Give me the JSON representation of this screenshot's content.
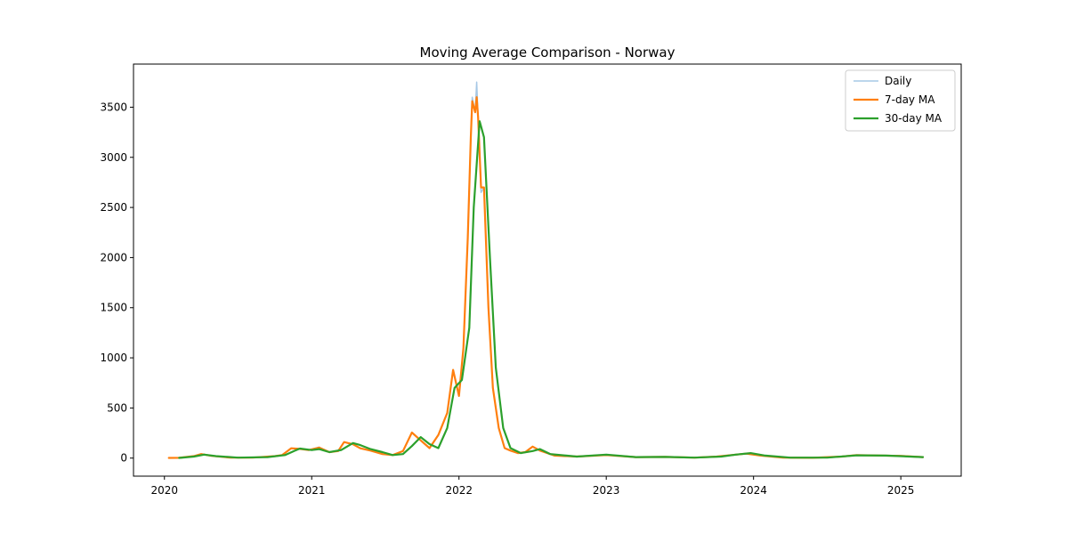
{
  "chart_data": {
    "type": "line",
    "title": "Moving Average Comparison - Norway",
    "xlabel": "",
    "ylabel": "",
    "xlim": [
      2019.79,
      2025.41
    ],
    "ylim": [
      -180,
      3930
    ],
    "x_ticks": [
      2020,
      2021,
      2022,
      2023,
      2024,
      2025
    ],
    "y_ticks": [
      0,
      500,
      1000,
      1500,
      2000,
      2500,
      3000,
      3500
    ],
    "grid": false,
    "legend": {
      "position": "top-right",
      "entries": [
        "Daily",
        "7-day MA",
        "30-day MA"
      ]
    },
    "series": [
      {
        "name": "Daily",
        "color": "#a6c8e6",
        "points": [
          [
            2020.03,
            2
          ],
          [
            2020.1,
            3
          ],
          [
            2020.2,
            20
          ],
          [
            2020.25,
            42
          ],
          [
            2020.32,
            22
          ],
          [
            2020.45,
            5
          ],
          [
            2020.6,
            5
          ],
          [
            2020.75,
            20
          ],
          [
            2020.8,
            30
          ],
          [
            2020.86,
            100
          ],
          [
            2020.92,
            95
          ],
          [
            2020.98,
            80
          ],
          [
            2021.05,
            110
          ],
          [
            2021.12,
            60
          ],
          [
            2021.18,
            70
          ],
          [
            2021.22,
            160
          ],
          [
            2021.28,
            140
          ],
          [
            2021.33,
            100
          ],
          [
            2021.4,
            75
          ],
          [
            2021.48,
            40
          ],
          [
            2021.55,
            30
          ],
          [
            2021.62,
            70
          ],
          [
            2021.68,
            255
          ],
          [
            2021.73,
            190
          ],
          [
            2021.8,
            100
          ],
          [
            2021.86,
            230
          ],
          [
            2021.92,
            450
          ],
          [
            2021.96,
            880
          ],
          [
            2022.0,
            620
          ],
          [
            2022.03,
            1100
          ],
          [
            2022.06,
            2200
          ],
          [
            2022.08,
            3200
          ],
          [
            2022.09,
            3600
          ],
          [
            2022.11,
            3450
          ],
          [
            2022.12,
            3750
          ],
          [
            2022.13,
            3400
          ],
          [
            2022.15,
            2650
          ],
          [
            2022.17,
            2700
          ],
          [
            2022.2,
            1500
          ],
          [
            2022.23,
            700
          ],
          [
            2022.27,
            300
          ],
          [
            2022.31,
            100
          ],
          [
            2022.35,
            75
          ],
          [
            2022.4,
            50
          ],
          [
            2022.45,
            60
          ],
          [
            2022.5,
            115
          ],
          [
            2022.55,
            75
          ],
          [
            2022.65,
            25
          ],
          [
            2022.8,
            15
          ],
          [
            2023.0,
            30
          ],
          [
            2023.2,
            10
          ],
          [
            2023.4,
            12
          ],
          [
            2023.6,
            5
          ],
          [
            2023.75,
            15
          ],
          [
            2023.85,
            30
          ],
          [
            2023.95,
            45
          ],
          [
            2024.05,
            25
          ],
          [
            2024.2,
            5
          ],
          [
            2024.4,
            3
          ],
          [
            2024.6,
            15
          ],
          [
            2024.7,
            30
          ],
          [
            2024.85,
            25
          ],
          [
            2025.0,
            22
          ],
          [
            2025.15,
            10
          ]
        ]
      },
      {
        "name": "7-day MA",
        "color": "#ff7f0e",
        "points": [
          [
            2020.03,
            2
          ],
          [
            2020.1,
            3
          ],
          [
            2020.2,
            20
          ],
          [
            2020.25,
            40
          ],
          [
            2020.32,
            22
          ],
          [
            2020.45,
            5
          ],
          [
            2020.6,
            5
          ],
          [
            2020.75,
            20
          ],
          [
            2020.8,
            30
          ],
          [
            2020.86,
            98
          ],
          [
            2020.92,
            92
          ],
          [
            2020.98,
            80
          ],
          [
            2021.05,
            105
          ],
          [
            2021.12,
            60
          ],
          [
            2021.18,
            70
          ],
          [
            2021.22,
            160
          ],
          [
            2021.28,
            138
          ],
          [
            2021.33,
            98
          ],
          [
            2021.4,
            75
          ],
          [
            2021.48,
            40
          ],
          [
            2021.55,
            30
          ],
          [
            2021.62,
            70
          ],
          [
            2021.68,
            255
          ],
          [
            2021.73,
            190
          ],
          [
            2021.8,
            100
          ],
          [
            2021.86,
            230
          ],
          [
            2021.92,
            450
          ],
          [
            2021.96,
            880
          ],
          [
            2022.0,
            620
          ],
          [
            2022.03,
            1100
          ],
          [
            2022.06,
            2200
          ],
          [
            2022.08,
            3200
          ],
          [
            2022.09,
            3560
          ],
          [
            2022.11,
            3450
          ],
          [
            2022.12,
            3600
          ],
          [
            2022.13,
            3400
          ],
          [
            2022.15,
            2700
          ],
          [
            2022.17,
            2700
          ],
          [
            2022.2,
            1500
          ],
          [
            2022.23,
            700
          ],
          [
            2022.27,
            300
          ],
          [
            2022.31,
            100
          ],
          [
            2022.35,
            75
          ],
          [
            2022.4,
            50
          ],
          [
            2022.45,
            60
          ],
          [
            2022.5,
            115
          ],
          [
            2022.55,
            75
          ],
          [
            2022.65,
            25
          ],
          [
            2022.8,
            15
          ],
          [
            2023.0,
            30
          ],
          [
            2023.2,
            10
          ],
          [
            2023.4,
            12
          ],
          [
            2023.6,
            5
          ],
          [
            2023.75,
            15
          ],
          [
            2023.85,
            30
          ],
          [
            2023.95,
            45
          ],
          [
            2024.05,
            25
          ],
          [
            2024.2,
            5
          ],
          [
            2024.4,
            3
          ],
          [
            2024.6,
            15
          ],
          [
            2024.7,
            30
          ],
          [
            2024.85,
            25
          ],
          [
            2025.0,
            22
          ],
          [
            2025.15,
            10
          ]
        ]
      },
      {
        "name": "30-day MA",
        "color": "#2ca02c",
        "points": [
          [
            2020.1,
            2
          ],
          [
            2020.2,
            15
          ],
          [
            2020.27,
            35
          ],
          [
            2020.35,
            20
          ],
          [
            2020.5,
            5
          ],
          [
            2020.7,
            10
          ],
          [
            2020.82,
            30
          ],
          [
            2020.88,
            70
          ],
          [
            2020.92,
            95
          ],
          [
            2021.0,
            80
          ],
          [
            2021.05,
            90
          ],
          [
            2021.12,
            60
          ],
          [
            2021.2,
            80
          ],
          [
            2021.28,
            150
          ],
          [
            2021.33,
            130
          ],
          [
            2021.4,
            90
          ],
          [
            2021.48,
            60
          ],
          [
            2021.55,
            30
          ],
          [
            2021.62,
            40
          ],
          [
            2021.68,
            120
          ],
          [
            2021.74,
            210
          ],
          [
            2021.8,
            140
          ],
          [
            2021.86,
            100
          ],
          [
            2021.92,
            300
          ],
          [
            2021.97,
            700
          ],
          [
            2022.02,
            780
          ],
          [
            2022.07,
            1300
          ],
          [
            2022.1,
            2500
          ],
          [
            2022.14,
            3360
          ],
          [
            2022.17,
            3200
          ],
          [
            2022.21,
            2000
          ],
          [
            2022.25,
            900
          ],
          [
            2022.3,
            300
          ],
          [
            2022.35,
            100
          ],
          [
            2022.42,
            50
          ],
          [
            2022.5,
            70
          ],
          [
            2022.55,
            90
          ],
          [
            2022.62,
            40
          ],
          [
            2022.8,
            15
          ],
          [
            2023.0,
            35
          ],
          [
            2023.2,
            10
          ],
          [
            2023.4,
            12
          ],
          [
            2023.6,
            5
          ],
          [
            2023.78,
            15
          ],
          [
            2023.88,
            35
          ],
          [
            2023.98,
            50
          ],
          [
            2024.08,
            25
          ],
          [
            2024.25,
            5
          ],
          [
            2024.5,
            5
          ],
          [
            2024.7,
            28
          ],
          [
            2024.9,
            25
          ],
          [
            2025.15,
            10
          ]
        ]
      }
    ]
  }
}
